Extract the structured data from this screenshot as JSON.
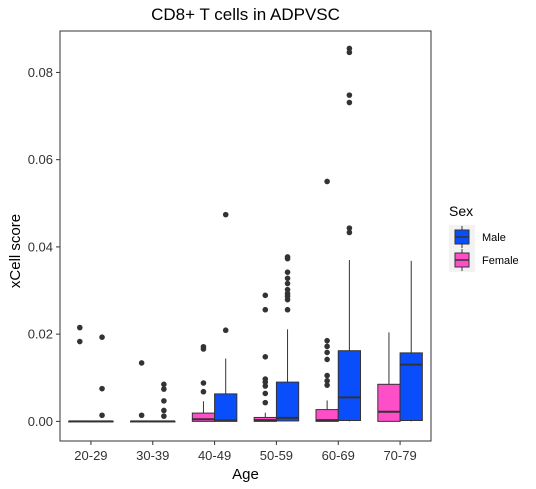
{
  "chart_data": {
    "type": "box",
    "title": "CD8+ T cells in ADPVSC",
    "xlabel": "Age",
    "ylabel": "xCell score",
    "categories": [
      "20-29",
      "30-39",
      "40-49",
      "50-59",
      "60-69",
      "70-79"
    ],
    "yticks": [
      0.0,
      0.02,
      0.04,
      0.06,
      0.08
    ],
    "ytick_labels": [
      "0.00",
      "0.02",
      "0.04",
      "0.06",
      "0.08"
    ],
    "ylim": [
      -0.0045,
      0.0895
    ],
    "grid": false,
    "legend": {
      "title": "Sex",
      "position": "right",
      "entries": [
        {
          "name": "Male",
          "color": "#0a4dfa"
        },
        {
          "name": "Female",
          "color": "#ff4fc8"
        }
      ]
    },
    "series": [
      {
        "name": "Female",
        "color": "#ff4fc8",
        "boxes": [
          {
            "min": 0,
            "q1": 0,
            "median": 0,
            "q3": 0,
            "max": 0,
            "outliers": [
              0.0215,
              0.0183
            ]
          },
          {
            "min": 0,
            "q1": 0,
            "median": 0,
            "q3": 0,
            "max": 0,
            "outliers": [
              0.0134,
              0.0014
            ]
          },
          {
            "min": 0,
            "q1": 0,
            "median": 0.0005,
            "q3": 0.0019,
            "max": 0.0046,
            "outliers": [
              0.0171,
              0.0166,
              0.0088,
              0.0068
            ]
          },
          {
            "min": 0,
            "q1": 0,
            "median": 0.0003,
            "q3": 0.0009,
            "max": 0.002,
            "outliers": [
              0.0289,
              0.0256,
              0.0148,
              0.0097,
              0.009,
              0.0081,
              0.0064,
              0.0043
            ]
          },
          {
            "min": 0,
            "q1": 0,
            "median": 0.0003,
            "q3": 0.0027,
            "max": 0.0048,
            "outliers": [
              0.055,
              0.0185,
              0.0172,
              0.0158,
              0.0142,
              0.0105,
              0.0093,
              0.0083
            ]
          },
          {
            "min": 0,
            "q1": 0,
            "median": 0.0022,
            "q3": 0.0085,
            "max": 0.0204,
            "outliers": []
          }
        ]
      },
      {
        "name": "Male",
        "color": "#0a4dfa",
        "boxes": [
          {
            "min": 0,
            "q1": 0,
            "median": 0,
            "q3": 0,
            "max": 0,
            "outliers": [
              0.0193,
              0.0075,
              0.0014
            ]
          },
          {
            "min": 0,
            "q1": 0,
            "median": 0,
            "q3": 0,
            "max": 0,
            "outliers": [
              0.0085,
              0.0074,
              0.0047,
              0.0025,
              0.0012
            ]
          },
          {
            "min": 0,
            "q1": 0,
            "median": 0.0002,
            "q3": 0.0063,
            "max": 0.0144,
            "outliers": [
              0.0474,
              0.0209
            ]
          },
          {
            "min": 0,
            "q1": 0.0001,
            "median": 0.0008,
            "q3": 0.009,
            "max": 0.0211,
            "outliers": [
              0.0377,
              0.0373,
              0.0342,
              0.0328,
              0.0316,
              0.0302,
              0.0293,
              0.0287,
              0.0279,
              0.0256
            ]
          },
          {
            "min": 0,
            "q1": 0.0002,
            "median": 0.0055,
            "q3": 0.0162,
            "max": 0.037,
            "outliers": [
              0.0855,
              0.0846,
              0.0748,
              0.0731,
              0.0443,
              0.0433
            ]
          },
          {
            "min": 0,
            "q1": 0.0002,
            "median": 0.013,
            "q3": 0.0157,
            "max": 0.0368,
            "outliers": []
          }
        ]
      }
    ]
  }
}
